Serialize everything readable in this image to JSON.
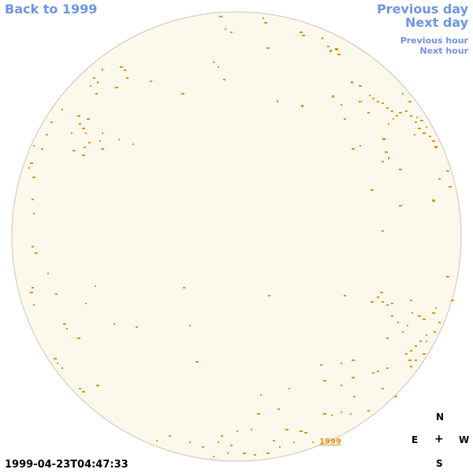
{
  "nav": {
    "back": "Back to 1999",
    "previous_day": "Previous day",
    "next_day": "Next day",
    "previous_hour": "Previous hour",
    "next_hour": "Next hour"
  },
  "timestamp": "1999-04-23T04:47:33",
  "year_label": "1999",
  "compass": {
    "n": "N",
    "e": "E",
    "center": "+",
    "w": "W",
    "s": "S"
  },
  "colors": {
    "link": "#6f95e3",
    "disk_fill": "#fdf8ec",
    "disk_border": "#c9c5b8",
    "feature": "#e8940e"
  }
}
